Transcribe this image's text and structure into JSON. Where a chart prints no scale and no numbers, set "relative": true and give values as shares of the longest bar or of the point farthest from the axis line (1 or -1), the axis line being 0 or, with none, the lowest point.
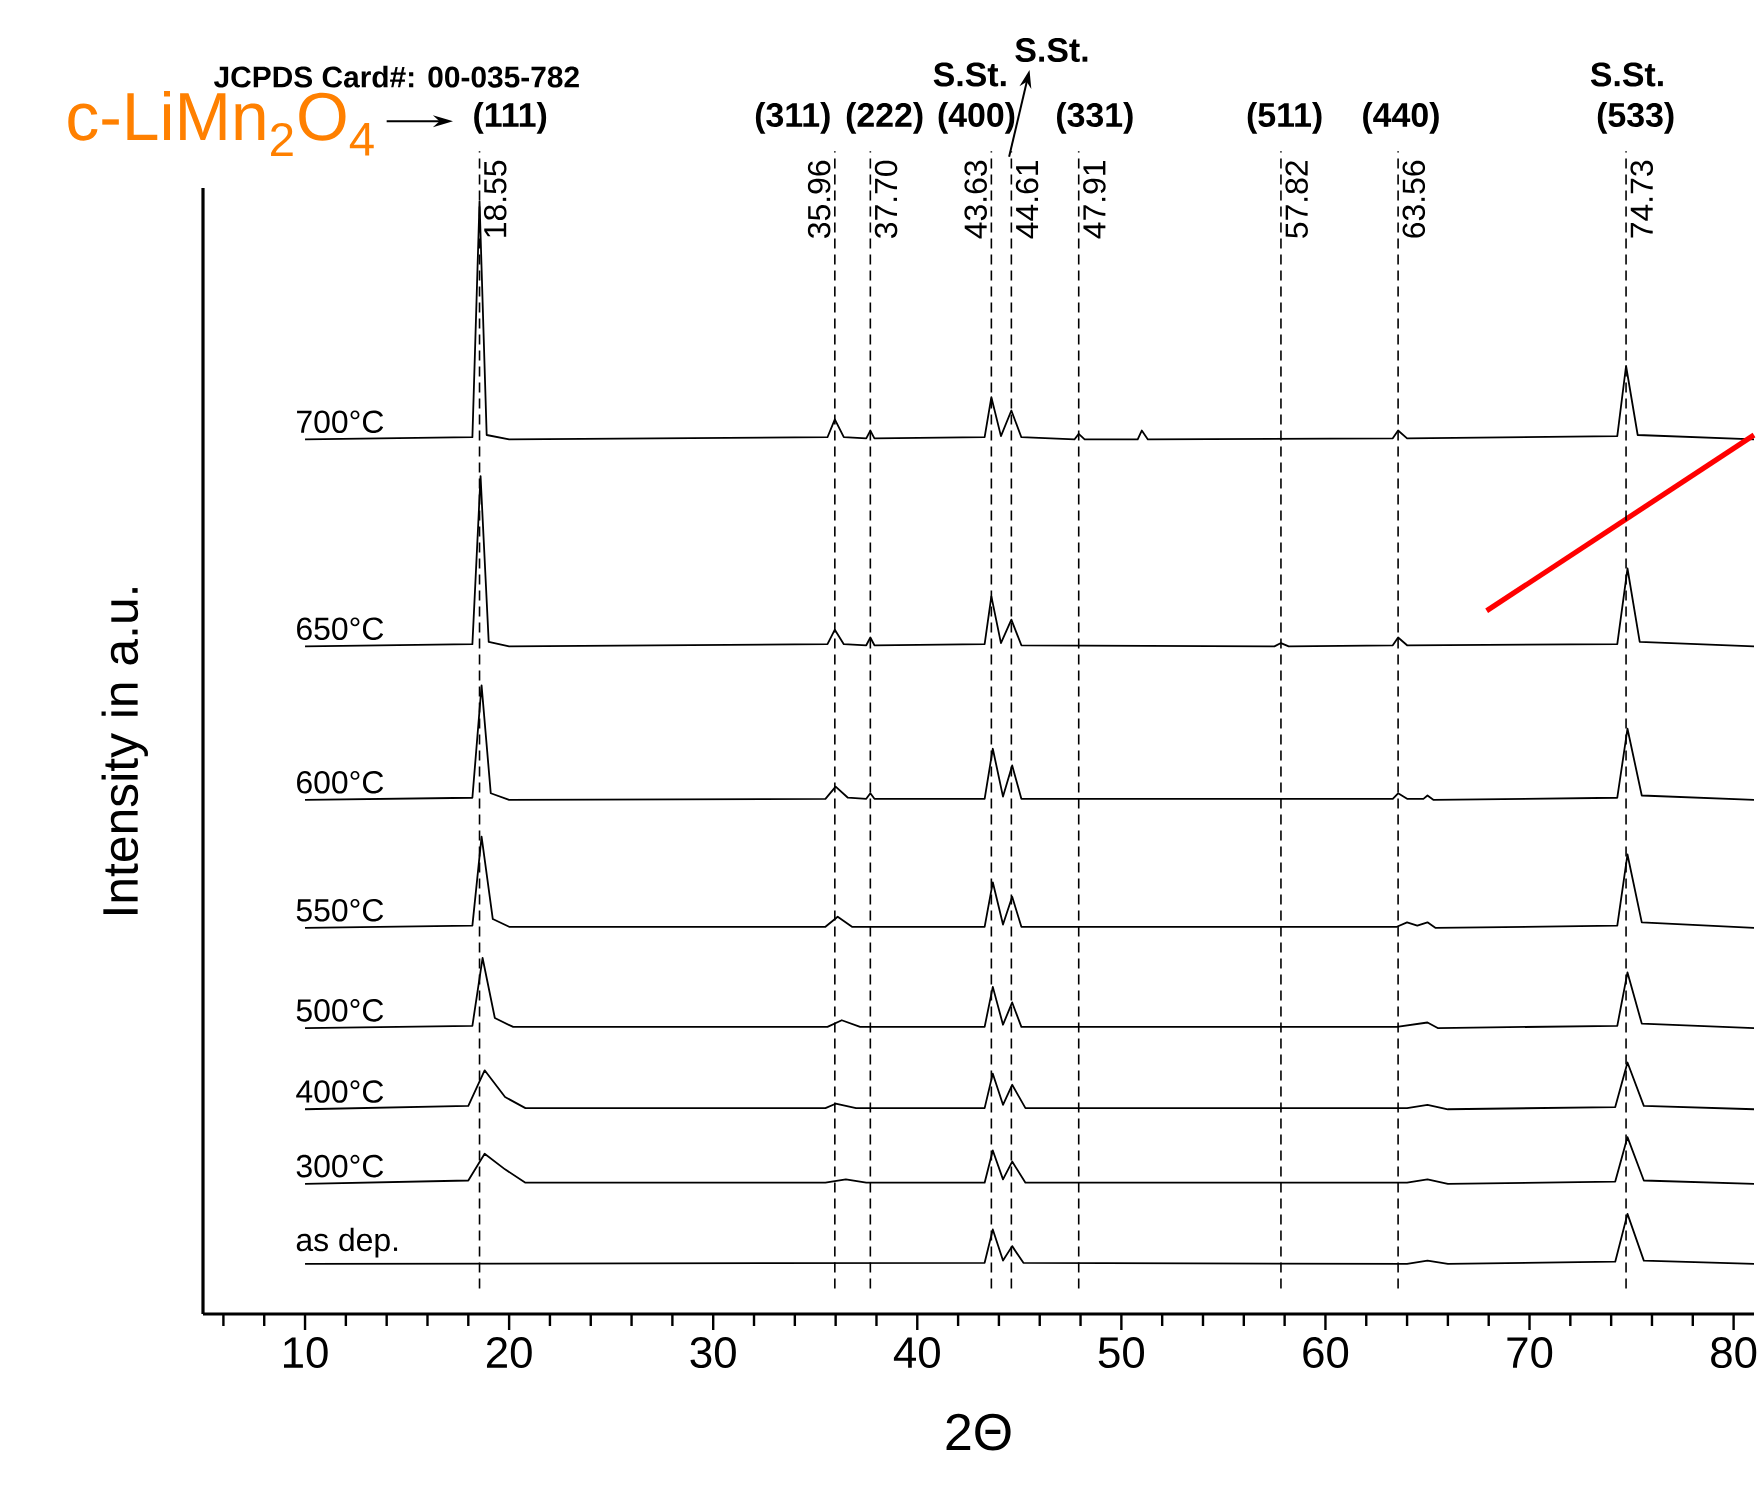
{
  "chart_data": {
    "type": "line",
    "relative": true,
    "xlabel": "2Θ",
    "ylabel": "Intensity in a.u.",
    "marker": "none",
    "xlim": [
      5,
      81
    ],
    "xticks": [
      {
        "value": 6,
        "label": null
      },
      {
        "value": 8,
        "label": null
      },
      10,
      {
        "value": 12,
        "label": null
      },
      {
        "value": 14,
        "label": null
      },
      {
        "value": 16,
        "label": null
      },
      {
        "value": 18,
        "label": null
      },
      20,
      {
        "value": 22,
        "label": null
      },
      {
        "value": 24,
        "label": null
      },
      {
        "value": 26,
        "label": null
      },
      {
        "value": 28,
        "label": null
      },
      30,
      {
        "value": 32,
        "label": null
      },
      {
        "value": 34,
        "label": null
      },
      {
        "value": 36,
        "label": null
      },
      {
        "value": 38,
        "label": null
      },
      40,
      {
        "value": 42,
        "label": null
      },
      {
        "value": 44,
        "label": null
      },
      {
        "value": 46,
        "label": null
      },
      {
        "value": 48,
        "label": null
      },
      50,
      {
        "value": 52,
        "label": null
      },
      {
        "value": 54,
        "label": null
      },
      {
        "value": 56,
        "label": null
      },
      {
        "value": 58,
        "label": null
      },
      60,
      {
        "value": 62,
        "label": null
      },
      {
        "value": 64,
        "label": null
      },
      {
        "value": 66,
        "label": null
      },
      {
        "value": 68,
        "label": null
      },
      70,
      {
        "value": 72,
        "label": null
      },
      {
        "value": 74,
        "label": null
      },
      {
        "value": 76,
        "label": null
      },
      {
        "value": 78,
        "label": null
      },
      80
    ],
    "series": [
      {
        "name": "700°C",
        "color": "#000000",
        "x": [
          10,
          18.2,
          18.55,
          18.9,
          20,
          35.6,
          35.96,
          36.4,
          37.5,
          37.7,
          37.9,
          43.3,
          43.63,
          44.1,
          44.61,
          45.1,
          47.7,
          47.91,
          48.2,
          50.8,
          51,
          51.3,
          63.3,
          63.56,
          64,
          74.3,
          74.73,
          75.3,
          81
        ],
        "values": [
          0.786,
          0.788,
          1.0,
          0.79,
          0.786,
          0.788,
          0.804,
          0.788,
          0.787,
          0.794,
          0.787,
          0.788,
          0.824,
          0.789,
          0.812,
          0.788,
          0.786,
          0.791,
          0.786,
          0.786,
          0.794,
          0.786,
          0.787,
          0.794,
          0.787,
          0.789,
          0.852,
          0.79,
          0.786
        ]
      },
      {
        "name": "650°C",
        "color": "#000000",
        "x": [
          10,
          18.2,
          18.6,
          19.0,
          20,
          35.6,
          35.96,
          36.4,
          37.5,
          37.7,
          37.9,
          43.3,
          43.63,
          44.1,
          44.61,
          45.1,
          57.5,
          57.82,
          58.2,
          63.3,
          63.56,
          64,
          74.3,
          74.8,
          75.4,
          81
        ],
        "values": [
          0.6,
          0.602,
          0.753,
          0.604,
          0.6,
          0.602,
          0.615,
          0.602,
          0.601,
          0.608,
          0.601,
          0.602,
          0.645,
          0.603,
          0.624,
          0.601,
          0.6,
          0.603,
          0.6,
          0.601,
          0.608,
          0.601,
          0.602,
          0.67,
          0.604,
          0.6
        ]
      },
      {
        "name": "600°C",
        "color": "#000000",
        "x": [
          10,
          18.2,
          18.65,
          19.1,
          20,
          35.5,
          36.0,
          36.6,
          37.5,
          37.7,
          37.9,
          43.3,
          43.7,
          44.2,
          44.65,
          45.1,
          63.3,
          63.56,
          64,
          64.8,
          65,
          65.3,
          74.3,
          74.8,
          75.5,
          81
        ],
        "values": [
          0.462,
          0.464,
          0.565,
          0.468,
          0.462,
          0.463,
          0.474,
          0.464,
          0.463,
          0.468,
          0.463,
          0.463,
          0.508,
          0.465,
          0.493,
          0.463,
          0.463,
          0.468,
          0.463,
          0.463,
          0.466,
          0.462,
          0.464,
          0.526,
          0.466,
          0.462
        ]
      },
      {
        "name": "550°C",
        "color": "#000000",
        "x": [
          10,
          18.2,
          18.65,
          19.2,
          20,
          35.5,
          36.1,
          36.8,
          43.3,
          43.7,
          44.2,
          44.65,
          45.1,
          63.5,
          64,
          64.5,
          65,
          65.4,
          74.3,
          74.8,
          75.5,
          81
        ],
        "values": [
          0.347,
          0.349,
          0.429,
          0.355,
          0.348,
          0.348,
          0.357,
          0.348,
          0.348,
          0.388,
          0.35,
          0.375,
          0.348,
          0.348,
          0.352,
          0.349,
          0.352,
          0.347,
          0.349,
          0.413,
          0.352,
          0.347
        ]
      },
      {
        "name": "500°C",
        "color": "#000000",
        "x": [
          10,
          18.2,
          18.7,
          19.3,
          20.2,
          35.6,
          36.3,
          37.2,
          43.3,
          43.7,
          44.2,
          44.65,
          45.1,
          63.5,
          65,
          65.5,
          74.3,
          74.8,
          75.5,
          81
        ],
        "values": [
          0.257,
          0.259,
          0.32,
          0.266,
          0.258,
          0.258,
          0.264,
          0.258,
          0.258,
          0.294,
          0.26,
          0.28,
          0.258,
          0.258,
          0.262,
          0.257,
          0.259,
          0.307,
          0.261,
          0.257
        ]
      },
      {
        "name": "400°C",
        "color": "#000000",
        "x": [
          10,
          18.0,
          18.8,
          19.8,
          20.8,
          35.5,
          36.0,
          37.0,
          43.3,
          43.7,
          44.2,
          44.65,
          45.3,
          64,
          65,
          66,
          74.2,
          74.8,
          75.6,
          81
        ],
        "values": [
          0.184,
          0.187,
          0.219,
          0.195,
          0.185,
          0.185,
          0.189,
          0.185,
          0.185,
          0.216,
          0.188,
          0.206,
          0.185,
          0.185,
          0.188,
          0.184,
          0.186,
          0.226,
          0.187,
          0.184
        ]
      },
      {
        "name": "300°C",
        "color": "#000000",
        "x": [
          10,
          18.0,
          18.8,
          19.8,
          20.8,
          35.5,
          36.5,
          37.5,
          43.3,
          43.7,
          44.2,
          44.65,
          45.3,
          64,
          65,
          66,
          74.2,
          74.8,
          75.6,
          81
        ],
        "values": [
          0.117,
          0.12,
          0.144,
          0.13,
          0.118,
          0.118,
          0.121,
          0.118,
          0.118,
          0.147,
          0.121,
          0.137,
          0.118,
          0.118,
          0.121,
          0.117,
          0.119,
          0.159,
          0.12,
          0.117
        ]
      },
      {
        "name": "as dep.",
        "color": "#000000",
        "x": [
          10,
          43.3,
          43.7,
          44.2,
          44.65,
          45.2,
          64,
          65,
          66,
          74.2,
          74.8,
          75.6,
          81
        ],
        "values": [
          0.045,
          0.046,
          0.076,
          0.048,
          0.061,
          0.046,
          0.045,
          0.048,
          0.045,
          0.047,
          0.09,
          0.048,
          0.045
        ]
      },
      {
        "color": "#ff0000",
        "x": [
          67.9,
          81
        ],
        "values": [
          0.632,
          0.79
        ]
      }
    ],
    "ref_lines": [
      {
        "axis": "x",
        "value": 18.55,
        "label": "18.55",
        "line_style": "dashed"
      },
      {
        "axis": "x",
        "value": 35.96,
        "label": "35.96",
        "line_style": "dashed"
      },
      {
        "axis": "x",
        "value": 37.7,
        "label": "37.70",
        "line_style": "dashed"
      },
      {
        "axis": "x",
        "value": 43.63,
        "label": "43.63",
        "line_style": "dashed"
      },
      {
        "axis": "x",
        "value": 44.61,
        "label": "44.61",
        "line_style": "dashed"
      },
      {
        "axis": "x",
        "value": 47.91,
        "label": "47.91",
        "line_style": "dashed"
      },
      {
        "axis": "x",
        "value": 57.82,
        "label": "57.82",
        "line_style": "dashed"
      },
      {
        "axis": "x",
        "value": 63.56,
        "label": "63.56",
        "line_style": "dashed"
      },
      {
        "axis": "x",
        "value": 74.73,
        "label": "74.73",
        "line_style": "dashed"
      }
    ],
    "annotations": [
      "JCPDS Card#: 00-035-782",
      "c-LiMn$_{2}$O$_{4}$",
      "(111)",
      "(311)",
      "(222)",
      "(400)",
      "S.St.",
      "S.St.",
      "(331)",
      "(511)",
      "(440)",
      "(533)",
      "S.St."
    ]
  }
}
